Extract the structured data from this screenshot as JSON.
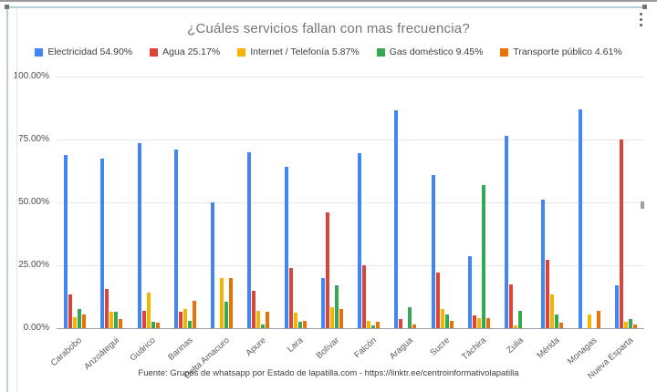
{
  "chrome": {
    "icons": {
      "menu": "kebab-menu-icon"
    },
    "selection_color": "#b9d0d6"
  },
  "chart_data": {
    "type": "bar",
    "title": "¿Cuáles servicios fallan con mas frecuencia?",
    "footer": "Fuente: Grupos de whatsapp por Estado de lapatilla.com -  https://linktr.ee/centroinformativolapatilla",
    "categories": [
      "Carabobo",
      "Anzoátegui",
      "Guárico",
      "Barinas",
      "Delta Amacuro",
      "Apure",
      "Lara",
      "Bolívar",
      "Falcón",
      "Aragua",
      "Sucre",
      "Táchira",
      "Zulia",
      "Mérida",
      "Monagas",
      "Nueva Esparta"
    ],
    "series": [
      {
        "name": "Electricidad",
        "legend_label": "Electricidad 54.90%",
        "color": "#4285F4",
        "values": [
          69,
          67.5,
          73.5,
          71,
          50,
          70,
          64,
          20,
          69.5,
          86.5,
          61,
          28.5,
          76.5,
          51,
          87,
          17
        ]
      },
      {
        "name": "Agua",
        "legend_label": "Agua 25.17%",
        "color": "#DB4437",
        "values": [
          13.5,
          15.5,
          7,
          6.5,
          0,
          15,
          24,
          46,
          25,
          3.5,
          22,
          5,
          17.5,
          27,
          0,
          75
        ]
      },
      {
        "name": "Internet / Telefonía",
        "legend_label": "Internet / Telefonía 5.87%",
        "color": "#F4B400",
        "values": [
          4.5,
          6.5,
          14,
          7.5,
          20,
          7,
          6,
          8.5,
          3,
          0,
          7.5,
          4,
          1,
          13.5,
          5.5,
          2.5
        ]
      },
      {
        "name": "Gas doméstico",
        "legend_label": "Gas doméstico 9.45%",
        "color": "#34A853",
        "values": [
          7.5,
          6.5,
          2.5,
          3,
          10.5,
          1.5,
          2.5,
          17,
          1,
          8.5,
          5.5,
          57,
          7,
          5.5,
          0,
          3.5
        ]
      },
      {
        "name": "Transporte público",
        "legend_label": "Transporte público 4.61%",
        "color": "#E8710A",
        "values": [
          5.5,
          3.5,
          2,
          11,
          20,
          6.5,
          3,
          7.5,
          2.5,
          1.5,
          3,
          4,
          0,
          2,
          7,
          1.5
        ]
      }
    ],
    "y_ticks": [
      "100.00%",
      "75.00%",
      "50.00%",
      "25.00%",
      "0.00%"
    ],
    "ylim": [
      0,
      100
    ],
    "grid": true,
    "legend_position": "top",
    "xlabel": "",
    "ylabel": ""
  }
}
